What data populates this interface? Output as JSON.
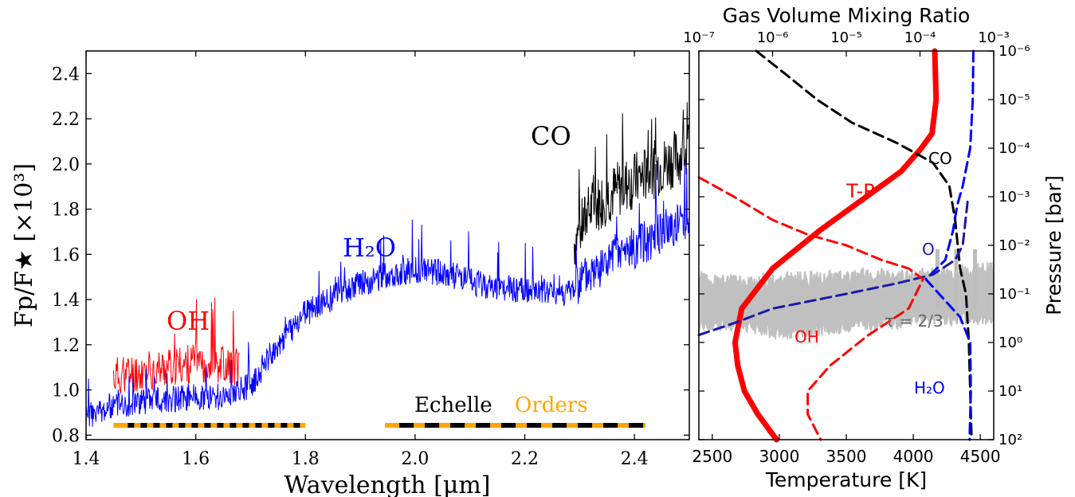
{
  "chart_data": [
    {
      "type": "line",
      "xlabel": "Wavelength [μm]",
      "ylabel": "Fp/F★ [×10³]",
      "xlim": [
        1.4,
        2.5
      ],
      "ylim": [
        0.78,
        2.5
      ],
      "x_ticks": [
        "1.4",
        "1.6",
        "1.8",
        "2.0",
        "2.2",
        "2.4"
      ],
      "y_ticks": [
        "0.8",
        "1.0",
        "1.2",
        "1.4",
        "1.6",
        "1.8",
        "2.0",
        "2.2",
        "2.4"
      ],
      "annotations": [
        {
          "text": "CO",
          "color": "#000000"
        },
        {
          "text": "H₂O",
          "color": "#0000ff"
        },
        {
          "text": "OH",
          "color": "#ff0000"
        },
        {
          "text": "Echelle",
          "color": "#000000"
        },
        {
          "text": "Orders",
          "color": "#ffa500"
        }
      ],
      "series": [
        {
          "name": "CO",
          "color": "#000000",
          "x": [
            2.29,
            2.32,
            2.35,
            2.38,
            2.41,
            2.44,
            2.47,
            2.5
          ],
          "y": [
            1.65,
            1.8,
            1.86,
            1.9,
            1.94,
            1.98,
            2.02,
            2.06
          ]
        },
        {
          "name": "OH",
          "color": "#ff0000",
          "x": [
            1.45,
            1.5,
            1.55,
            1.6,
            1.65,
            1.68
          ],
          "y": [
            1.06,
            1.08,
            1.1,
            1.12,
            1.12,
            1.1
          ]
        },
        {
          "name": "H2O",
          "color": "#0000ff",
          "x": [
            1.4,
            1.45,
            1.5,
            1.55,
            1.6,
            1.65,
            1.7,
            1.75,
            1.8,
            1.85,
            1.9,
            1.95,
            2.0,
            2.05,
            2.1,
            2.15,
            2.2,
            2.25,
            2.28,
            2.3,
            2.35,
            2.4,
            2.45,
            2.5
          ],
          "y": [
            0.88,
            0.93,
            0.95,
            0.96,
            0.97,
            0.97,
            1.02,
            1.2,
            1.34,
            1.41,
            1.47,
            1.51,
            1.53,
            1.52,
            1.48,
            1.45,
            1.44,
            1.43,
            1.43,
            1.48,
            1.56,
            1.63,
            1.7,
            1.76
          ]
        }
      ],
      "echelle_orders": [
        {
          "x_start": 1.45,
          "x_end": 1.8
        },
        {
          "x_start": 1.945,
          "x_end": 2.42
        }
      ]
    },
    {
      "type": "line",
      "xlabel": "Temperature [K]",
      "ylabel": "Pressure [bar]",
      "top_xlabel": "Gas Volume Mixing Ratio",
      "xlim": [
        2400,
        4600
      ],
      "y_scale": "log",
      "ylim": [
        100,
        1e-06
      ],
      "top_xlim": [
        1e-07,
        0.001
      ],
      "x_ticks": [
        "2500",
        "3000",
        "3500",
        "4000",
        "4500"
      ],
      "top_x_ticks": [
        "10⁻⁷",
        "10⁻⁶",
        "10⁻⁵",
        "10⁻⁴",
        "10⁻³"
      ],
      "y_ticks": [
        "10⁻⁶",
        "10⁻⁵",
        "10⁻⁴",
        "10⁻³",
        "10⁻²",
        "10⁻¹",
        "10⁰",
        "10¹",
        "10²"
      ],
      "annotations": [
        {
          "text": "T-P",
          "color": "#ff0000"
        },
        {
          "text": "CO",
          "color": "#000000"
        },
        {
          "text": "O",
          "color": "#1a1aa8"
        },
        {
          "text": "OH",
          "color": "#ff0000"
        },
        {
          "text": "H₂O",
          "color": "#0000ff"
        },
        {
          "text": "τ = 2/3",
          "color": "#666666"
        }
      ],
      "series": [
        {
          "name": "T-P",
          "color": "#ff0000",
          "axis": "temperature",
          "x": [
            4160,
            4170,
            4140,
            4060,
            3910,
            3650,
            3300,
            2950,
            2720,
            2670,
            2690,
            2740,
            2840,
            2980
          ],
          "y": [
            1e-06,
            1e-05,
            5e-05,
            0.0001,
            0.0003,
            0.001,
            0.005,
            0.03,
            0.2,
            1.0,
            3.0,
            10.0,
            30.0,
            100.0
          ]
        },
        {
          "name": "CO",
          "color": "#000000",
          "axis": "vmr",
          "x": [
            6e-07,
            1.5e-06,
            4e-06,
            1.2e-05,
            5e-05,
            0.00015,
            0.00025,
            0.0003,
            0.00035,
            0.00042,
            0.00046,
            0.00048,
            0.0005
          ],
          "y": [
            1e-06,
            3e-06,
            1e-05,
            3e-05,
            8e-05,
            0.0002,
            0.0006,
            0.003,
            0.03,
            0.1,
            1.0,
            10.0,
            100.0
          ]
        },
        {
          "name": "H2O",
          "color": "#0000ff",
          "axis": "vmr",
          "x": [
            0.00053,
            0.00052,
            0.00048,
            0.00038,
            0.00032,
            0.00028,
            0.00022,
            0.00012,
            0.00035,
            0.00048,
            0.00049,
            0.00047
          ],
          "y": [
            1e-06,
            1e-05,
            0.0001,
            0.0006,
            0.0015,
            0.005,
            0.02,
            0.05,
            0.3,
            1.0,
            10.0,
            100.0
          ]
        },
        {
          "name": "O",
          "color": "#1a1aa8",
          "axis": "vmr",
          "x": [
            1e-07,
            3e-07,
            1e-06,
            1e-05,
            5e-05,
            0.00015,
            0.0003,
            0.00038,
            0.00045
          ],
          "y": [
            0.7,
            0.4,
            0.2,
            0.1,
            0.06,
            0.04,
            0.02,
            0.01,
            0.001
          ]
        },
        {
          "name": "OH",
          "color": "#ff0000",
          "axis": "vmr",
          "x": [
            1e-07,
            3e-07,
            1e-06,
            3e-06,
            1e-05,
            3e-05,
            7e-05,
            0.00011,
            7e-05,
            2e-05,
            6e-06,
            3e-06,
            3e-06,
            4.5e-06
          ],
          "y": [
            0.0004,
            0.001,
            0.003,
            0.006,
            0.01,
            0.02,
            0.03,
            0.05,
            0.2,
            0.7,
            3.0,
            10.0,
            30.0,
            100.0
          ]
        }
      ],
      "tau_band": {
        "label": "τ = 2/3",
        "color": "#bdbdbd",
        "x": [
          2400,
          2700,
          3000,
          3300,
          3600,
          3900,
          4200,
          4500,
          4600
        ],
        "y_top": [
          0.05,
          0.06,
          0.05,
          0.05,
          0.045,
          0.045,
          0.04,
          0.035,
          0.03
        ],
        "y_bottom": [
          0.4,
          0.4,
          0.6,
          0.5,
          0.4,
          0.35,
          0.3,
          0.3,
          0.3
        ]
      }
    }
  ]
}
